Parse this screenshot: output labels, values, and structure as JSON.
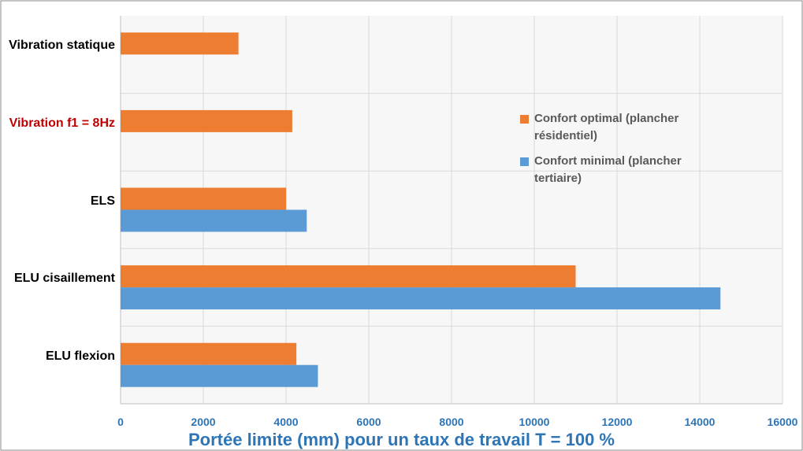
{
  "chart_data": {
    "type": "bar",
    "orientation": "horizontal",
    "x_label": "Portée limite (mm) pour un taux de travail T = 100 %",
    "categories": [
      "Vibration statique",
      "Vibration f1 = 8Hz",
      "ELS",
      "ELU cisaillement",
      "ELU flexion"
    ],
    "category_colors": [
      "#000000",
      "#c00000",
      "#000000",
      "#000000",
      "#000000"
    ],
    "series": [
      {
        "name": "Confort optimal (plancher résidentiel)",
        "color": "#ed7d31",
        "values": [
          2850,
          4150,
          4000,
          11000,
          4250
        ]
      },
      {
        "name": "Confort minimal (plancher tertiaire)",
        "color": "#5b9bd5",
        "values": [
          null,
          null,
          4500,
          14500,
          4770
        ]
      }
    ],
    "xlim": [
      0,
      16000
    ],
    "xticks": [
      0,
      2000,
      4000,
      6000,
      8000,
      10000,
      12000,
      14000,
      16000
    ],
    "grid": true,
    "legend": "right"
  }
}
